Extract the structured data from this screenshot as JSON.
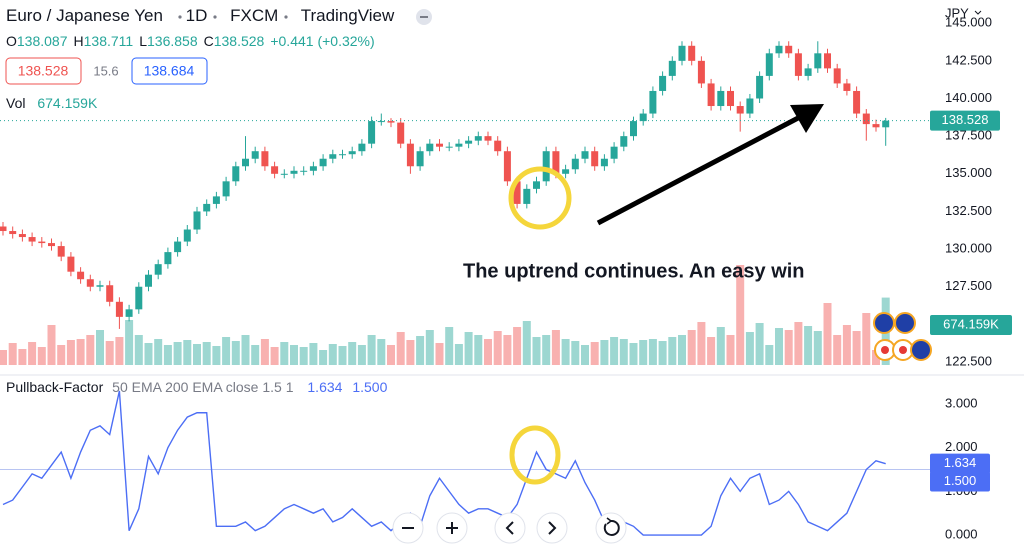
{
  "header": {
    "title": "Euro / Japanese Yen",
    "interval": "1D",
    "source": "FXCM",
    "platform": "TradingView",
    "currency": "JPY",
    "ohlc": [
      {
        "label": "O",
        "value": "138.087"
      },
      {
        "label": "H",
        "value": "138.711"
      },
      {
        "label": "L",
        "value": "136.858"
      },
      {
        "label": "C",
        "value": "138.528"
      }
    ],
    "change": "+0.441 (+0.32%)",
    "sell": "138.528",
    "spread": "15.6",
    "buy": "138.684",
    "volume_label": "Vol",
    "volume_value": "674.159K"
  },
  "chart_data": [
    {
      "type": "candlestick",
      "annotation": "The uptrend continues. An easy win",
      "up_color": "#26a69a",
      "down_color": "#ef5350",
      "open": [
        131.5,
        131.2,
        131.0,
        130.8,
        130.5,
        130.4,
        130.2,
        129.5,
        128.5,
        128.0,
        127.5,
        127.6,
        126.5,
        125.5,
        126.0,
        127.5,
        128.3,
        129.0,
        129.8,
        130.5,
        131.3,
        132.5,
        133.0,
        133.5,
        134.5,
        135.5,
        136.0,
        136.5,
        135.5,
        135.0,
        135.0,
        135.2,
        135.2,
        135.5,
        136.0,
        136.3,
        136.3,
        136.5,
        137.0,
        138.5,
        138.5,
        138.4,
        137.0,
        135.5,
        136.5,
        137.0,
        136.8,
        136.8,
        137.0,
        137.2,
        137.5,
        137.2,
        136.5,
        134.5,
        133.0,
        134.0,
        134.5,
        136.5,
        135.0,
        135.3,
        136.0,
        136.5,
        135.5,
        136.0,
        136.8,
        137.5,
        138.5,
        139.0,
        140.5,
        141.5,
        142.5,
        143.5,
        142.5,
        141.0,
        139.5,
        140.5,
        139.5,
        139.0,
        140.0,
        141.5,
        143.0,
        143.5,
        143.0,
        141.5,
        142.0,
        143.0,
        142.0,
        141.0,
        140.5,
        139.0,
        138.3,
        138.087
      ],
      "high": [
        131.8,
        131.5,
        131.3,
        131.1,
        130.8,
        130.7,
        130.5,
        129.8,
        128.8,
        128.3,
        127.9,
        127.9,
        126.8,
        126.3,
        127.8,
        128.6,
        129.3,
        130.1,
        130.8,
        131.6,
        132.8,
        133.3,
        133.8,
        134.8,
        135.8,
        137.5,
        136.8,
        136.8,
        135.8,
        135.3,
        135.5,
        135.5,
        135.8,
        136.3,
        136.6,
        136.6,
        136.8,
        137.3,
        138.8,
        139.0,
        138.7,
        138.7,
        137.3,
        136.8,
        137.3,
        137.3,
        137.1,
        137.3,
        137.5,
        137.8,
        137.8,
        137.5,
        136.8,
        134.8,
        134.3,
        134.8,
        136.8,
        136.8,
        135.6,
        136.3,
        136.8,
        136.8,
        136.3,
        137.1,
        137.8,
        138.8,
        139.3,
        140.8,
        141.8,
        142.8,
        143.8,
        143.8,
        142.8,
        141.3,
        140.8,
        140.8,
        139.8,
        140.3,
        141.8,
        143.3,
        143.8,
        143.8,
        143.3,
        142.3,
        143.8,
        143.3,
        142.3,
        141.3,
        140.8,
        139.3,
        138.6,
        138.711
      ],
      "low": [
        130.9,
        130.7,
        130.5,
        130.2,
        130.1,
        129.9,
        129.2,
        128.2,
        127.7,
        127.2,
        127.2,
        126.2,
        124.7,
        125.2,
        125.7,
        127.2,
        128.0,
        128.7,
        129.5,
        130.2,
        131.0,
        132.2,
        132.7,
        133.2,
        134.2,
        135.2,
        135.7,
        135.2,
        134.7,
        134.7,
        134.7,
        134.9,
        134.9,
        135.2,
        135.7,
        136.0,
        136.0,
        136.2,
        136.7,
        138.2,
        138.1,
        136.7,
        135.0,
        135.2,
        136.2,
        136.5,
        136.5,
        136.5,
        136.7,
        136.9,
        136.9,
        136.2,
        134.2,
        132.7,
        132.7,
        133.7,
        134.2,
        134.7,
        134.7,
        135.0,
        135.7,
        135.2,
        135.2,
        135.7,
        136.5,
        137.2,
        138.2,
        138.7,
        140.2,
        141.2,
        142.2,
        142.2,
        140.7,
        139.2,
        139.2,
        139.2,
        137.8,
        138.7,
        139.7,
        141.2,
        142.7,
        142.7,
        141.2,
        141.2,
        141.7,
        141.7,
        140.7,
        140.2,
        138.7,
        137.2,
        137.8,
        136.858
      ],
      "close": [
        131.2,
        131.0,
        130.8,
        130.5,
        130.4,
        130.2,
        129.5,
        128.5,
        128.0,
        127.5,
        127.6,
        126.5,
        125.5,
        126.0,
        127.5,
        128.3,
        129.0,
        129.8,
        130.5,
        131.3,
        132.5,
        133.0,
        133.5,
        134.5,
        135.5,
        136.0,
        136.5,
        135.5,
        135.0,
        135.0,
        135.2,
        135.2,
        135.5,
        136.0,
        136.3,
        136.3,
        136.5,
        137.0,
        138.5,
        138.5,
        138.4,
        137.0,
        135.5,
        136.5,
        137.0,
        136.8,
        136.8,
        137.0,
        137.2,
        137.5,
        137.2,
        136.5,
        134.5,
        133.0,
        134.0,
        134.5,
        136.5,
        135.0,
        135.3,
        136.0,
        136.5,
        135.5,
        136.0,
        136.8,
        137.5,
        138.5,
        139.0,
        140.5,
        141.5,
        142.5,
        143.5,
        142.5,
        141.0,
        139.5,
        140.5,
        139.5,
        139.0,
        140.0,
        141.5,
        143.0,
        143.5,
        143.0,
        141.5,
        142.0,
        143.0,
        142.0,
        141.0,
        140.5,
        139.0,
        138.3,
        138.087,
        138.528
      ],
      "volume": [
        150,
        220,
        160,
        230,
        180,
        400,
        200,
        250,
        260,
        300,
        350,
        240,
        280,
        450,
        300,
        220,
        260,
        200,
        230,
        250,
        210,
        230,
        190,
        280,
        240,
        300,
        200,
        260,
        180,
        230,
        200,
        180,
        220,
        150,
        210,
        190,
        230,
        200,
        300,
        260,
        200,
        330,
        250,
        290,
        350,
        220,
        380,
        210,
        330,
        300,
        260,
        340,
        300,
        380,
        440,
        280,
        300,
        350,
        260,
        240,
        200,
        230,
        250,
        280,
        260,
        220,
        250,
        260,
        240,
        280,
        300,
        350,
        430,
        280,
        380,
        300,
        1000,
        330,
        420,
        200,
        370,
        350,
        430,
        390,
        340,
        620,
        300,
        400,
        340,
        520,
        150,
        674.159
      ],
      "vlim": [
        0,
        3000
      ],
      "last_price_label": "138.528",
      "ylim": [
        121.64,
        146.54
      ],
      "yticks": [
        {
          "value": 122.5,
          "label": "122.500"
        },
        {
          "value": 125,
          "label": "125.000"
        },
        {
          "value": 127.5,
          "label": "127.500"
        },
        {
          "value": 130,
          "label": "130.000"
        },
        {
          "value": 132.5,
          "label": "132.500"
        },
        {
          "value": 135,
          "label": "135.000"
        },
        {
          "value": 137.5,
          "label": "137.500"
        },
        {
          "value": 140,
          "label": "140.000"
        },
        {
          "value": 142.5,
          "label": "142.500"
        },
        {
          "value": 145,
          "label": "145.000"
        }
      ],
      "grid": false
    },
    {
      "type": "line",
      "title": "Pullback-Factor",
      "params": "50 EMA 200 EMA close 1.5 1",
      "series": [
        {
          "color": "#4c6ef5",
          "last_label": "1.634",
          "values": [
            0.7,
            0.8,
            1.1,
            1.4,
            1.3,
            1.6,
            1.9,
            1.3,
            1.9,
            2.4,
            2.5,
            2.3,
            3.3,
            0.1,
            0.6,
            1.8,
            1.4,
            2.0,
            2.4,
            2.7,
            2.8,
            2.8,
            0.2,
            0.2,
            0.2,
            0.3,
            0.1,
            0.2,
            0.4,
            0.6,
            0.7,
            0.6,
            0.5,
            0.6,
            0.3,
            0.4,
            0.6,
            0.4,
            0.2,
            0.3,
            0.1,
            0.3,
            0.5,
            0.2,
            0.9,
            1.3,
            1.0,
            0.7,
            0.5,
            0.6,
            0.6,
            0.5,
            0.4,
            0.7,
            1.3,
            1.9,
            1.5,
            1.4,
            1.3,
            1.7,
            1.2,
            0.8,
            0.3,
            0.1,
            0.3,
            0.2,
            0.0,
            0.0,
            0.0,
            0.0,
            0.0,
            0.0,
            0.0,
            0.2,
            0.9,
            1.3,
            1.0,
            1.3,
            1.4,
            0.7,
            0.8,
            1.0,
            0.7,
            0.3,
            0.2,
            0.1,
            0.3,
            0.5,
            1.0,
            1.5,
            1.7,
            1.634
          ]
        }
      ],
      "hline": {
        "value": 1.5,
        "label": "1.500",
        "color": "#b8c4f2"
      },
      "ylim": [
        -0.32,
        3.55
      ],
      "yticks": [
        {
          "value": 0,
          "label": "0.000"
        },
        {
          "value": 1,
          "label": "1.000"
        },
        {
          "value": 2,
          "label": "2.000"
        },
        {
          "value": 3,
          "label": "3.000"
        }
      ],
      "grid": false
    }
  ]
}
